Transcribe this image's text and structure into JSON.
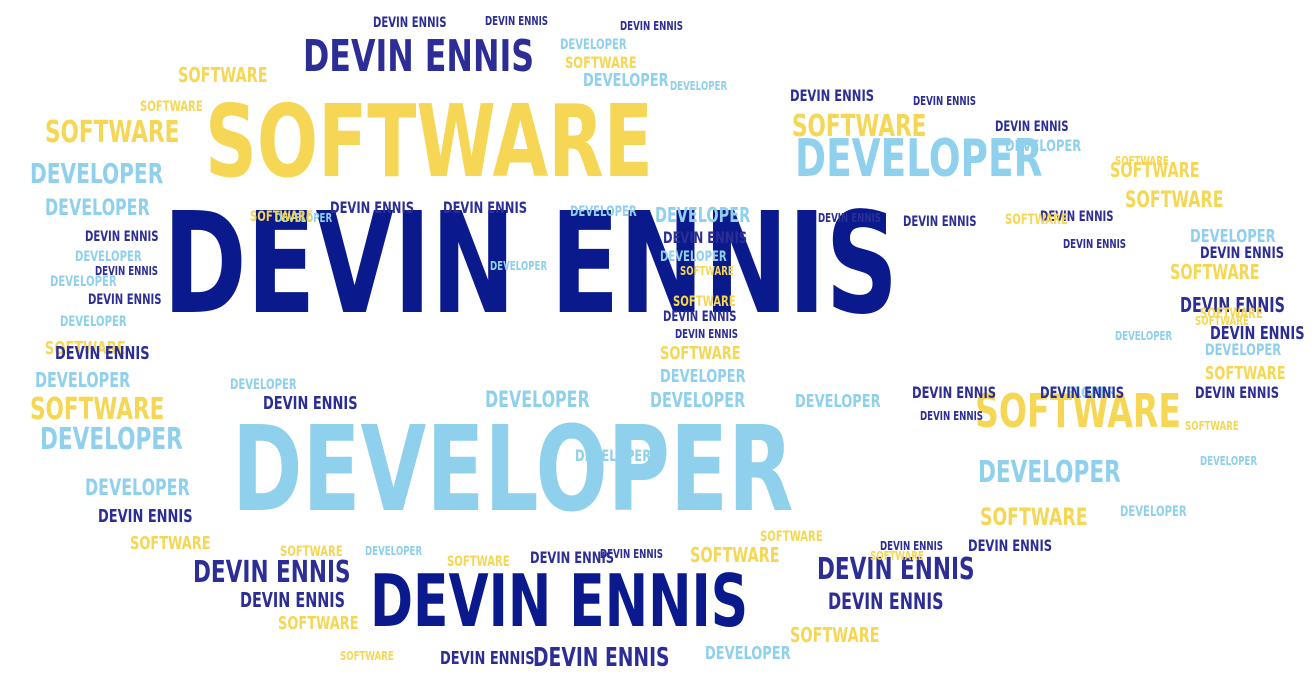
{
  "cloud": {
    "colors": {
      "navy": "#0a1a8c",
      "indigo": "#2c2e96",
      "gold": "#f5d755",
      "sky": "#8fd0ec"
    },
    "words": [
      {
        "text": "DEVIN ENNIS",
        "color": "navy"
      },
      {
        "text": "DEVELOPER",
        "color": "sky"
      },
      {
        "text": "SOFTWARE",
        "color": "gold"
      },
      {
        "text": "DEVIN ENNIS",
        "color": "navy"
      },
      {
        "text": "DEVIN ENNIS",
        "color": "indigo"
      },
      {
        "text": "DEVELOPER",
        "color": "sky"
      },
      {
        "text": "SOFTWARE",
        "color": "gold"
      },
      {
        "text": "DEVIN ENNIS",
        "color": "indigo"
      },
      {
        "text": "SOFTWARE",
        "color": "gold"
      },
      {
        "text": "SOFTWARE",
        "color": "gold"
      },
      {
        "text": "DEVELOPER",
        "color": "sky"
      },
      {
        "text": "DEVELOPER",
        "color": "sky"
      },
      {
        "text": "DEVIN ENNIS",
        "color": "indigo"
      },
      {
        "text": "SOFTWARE",
        "color": "gold"
      },
      {
        "text": "DEVELOPER",
        "color": "sky"
      },
      {
        "text": "DEVELOPER",
        "color": "sky"
      },
      {
        "text": "DEVIN ENNIS",
        "color": "indigo"
      },
      {
        "text": "DEVIN ENNIS",
        "color": "indigo"
      },
      {
        "text": "DEVIN ENNIS",
        "color": "indigo"
      },
      {
        "text": "DEVELOPER",
        "color": "sky"
      },
      {
        "text": "SOFTWARE",
        "color": "gold"
      },
      {
        "text": "DEVELOPER",
        "color": "sky"
      },
      {
        "text": "DEVELOPER",
        "color": "sky"
      },
      {
        "text": "DEVIN ENNIS",
        "color": "indigo"
      },
      {
        "text": "DEVIN ENNIS",
        "color": "indigo"
      },
      {
        "text": "SOFTWARE",
        "color": "gold"
      },
      {
        "text": "SOFTWARE",
        "color": "gold"
      },
      {
        "text": "SOFTWARE",
        "color": "gold"
      },
      {
        "text": "SOFTWARE",
        "color": "gold"
      },
      {
        "text": "DEVIN ENNIS",
        "color": "indigo"
      },
      {
        "text": "DEVELOPER",
        "color": "sky"
      },
      {
        "text": "DEVELOPER",
        "color": "sky"
      },
      {
        "text": "DEVELOPER",
        "color": "sky"
      },
      {
        "text": "DEVIN ENNIS",
        "color": "indigo"
      },
      {
        "text": "DEVIN ENNIS",
        "color": "indigo"
      },
      {
        "text": "DEVIN ENNIS",
        "color": "indigo"
      },
      {
        "text": "DEVIN ENNIS",
        "color": "indigo"
      },
      {
        "text": "DEVELOPER",
        "color": "sky"
      },
      {
        "text": "DEVELOPER",
        "color": "sky"
      },
      {
        "text": "SOFTWARE",
        "color": "gold"
      },
      {
        "text": "DEVIN ENNIS",
        "color": "indigo"
      },
      {
        "text": "DEVIN ENNIS",
        "color": "indigo"
      },
      {
        "text": "DEVELOPER",
        "color": "sky"
      },
      {
        "text": "SOFTWARE",
        "color": "gold"
      },
      {
        "text": "DEVELOPER",
        "color": "sky"
      },
      {
        "text": "DEVIN ENNIS",
        "color": "indigo"
      },
      {
        "text": "DEVIN ENNIS",
        "color": "indigo"
      },
      {
        "text": "DEVIN ENNIS",
        "color": "indigo"
      },
      {
        "text": "SOFTWARE",
        "color": "gold"
      },
      {
        "text": "SOFTWARE",
        "color": "gold"
      },
      {
        "text": "SOFTWARE",
        "color": "gold"
      },
      {
        "text": "SOFTWARE",
        "color": "gold"
      },
      {
        "text": "DEVIN ENNIS",
        "color": "indigo"
      },
      {
        "text": "DEVIN ENNIS",
        "color": "indigo"
      },
      {
        "text": "DEVIN ENNIS",
        "color": "indigo"
      },
      {
        "text": "DEVIN ENNIS",
        "color": "indigo"
      },
      {
        "text": "DEVELOPER",
        "color": "sky"
      },
      {
        "text": "DEVELOPER",
        "color": "sky"
      },
      {
        "text": "DEVELOPER",
        "color": "sky"
      },
      {
        "text": "DEVELOPER",
        "color": "sky"
      },
      {
        "text": "DEVIN ENNIS",
        "color": "indigo"
      },
      {
        "text": "SOFTWARE",
        "color": "gold"
      },
      {
        "text": "DEVIN ENNIS",
        "color": "indigo"
      },
      {
        "text": "DEVIN ENNIS",
        "color": "indigo"
      },
      {
        "text": "SOFTWARE",
        "color": "gold"
      },
      {
        "text": "DEVELOPER",
        "color": "sky"
      },
      {
        "text": "SOFTWARE",
        "color": "gold"
      },
      {
        "text": "DEVELOPER",
        "color": "sky"
      },
      {
        "text": "SOFTWARE",
        "color": "gold"
      },
      {
        "text": "DEVIN ENNIS",
        "color": "indigo"
      },
      {
        "text": "SOFTWARE",
        "color": "gold"
      },
      {
        "text": "DEVIN ENNIS",
        "color": "indigo"
      },
      {
        "text": "SOFTWARE",
        "color": "gold"
      },
      {
        "text": "DEVELOPER",
        "color": "sky"
      },
      {
        "text": "DEVELOPER",
        "color": "sky"
      },
      {
        "text": "DEVELOPER",
        "color": "sky"
      },
      {
        "text": "DEVIN ENNIS",
        "color": "indigo"
      },
      {
        "text": "DEVIN ENNIS",
        "color": "indigo"
      },
      {
        "text": "SOFTWARE",
        "color": "gold"
      },
      {
        "text": "DEVELOPER",
        "color": "sky"
      },
      {
        "text": "DEVIN ENNIS",
        "color": "indigo"
      },
      {
        "text": "DEVELOPER",
        "color": "sky"
      },
      {
        "text": "DEVELOPER",
        "color": "sky"
      },
      {
        "text": "DEVELOPER",
        "color": "sky"
      },
      {
        "text": "SOFTWARE",
        "color": "gold"
      },
      {
        "text": "DEVIN ENNIS",
        "color": "indigo"
      },
      {
        "text": "DEVIN ENNIS",
        "color": "indigo"
      },
      {
        "text": "DEVELOPER",
        "color": "sky"
      },
      {
        "text": "SOFTWARE",
        "color": "gold"
      },
      {
        "text": "DEVELOPER",
        "color": "sky"
      },
      {
        "text": "DEVELOPER",
        "color": "sky"
      },
      {
        "text": "SOFTWARE",
        "color": "gold"
      },
      {
        "text": "DEVIN ENNIS",
        "color": "indigo"
      },
      {
        "text": "DEVIN ENNIS",
        "color": "indigo"
      },
      {
        "text": "DEVIN ENNIS",
        "color": "indigo"
      },
      {
        "text": "DEVIN ENNIS",
        "color": "indigo"
      },
      {
        "text": "DEVIN ENNIS",
        "color": "indigo"
      },
      {
        "text": "DEVIN ENNIS",
        "color": "indigo"
      },
      {
        "text": "SOFTWARE",
        "color": "gold"
      },
      {
        "text": "SOFTWARE",
        "color": "gold"
      },
      {
        "text": "SOFTWARE",
        "color": "gold"
      },
      {
        "text": "SOFTWARE",
        "color": "gold"
      },
      {
        "text": "SOFTWARE",
        "color": "gold"
      },
      {
        "text": "DEVELOPER",
        "color": "sky"
      },
      {
        "text": "SOFTWARE",
        "color": "gold"
      },
      {
        "text": "DEVELOPER",
        "color": "sky"
      },
      {
        "text": "DEVIN ENNIS",
        "color": "indigo"
      }
    ]
  }
}
